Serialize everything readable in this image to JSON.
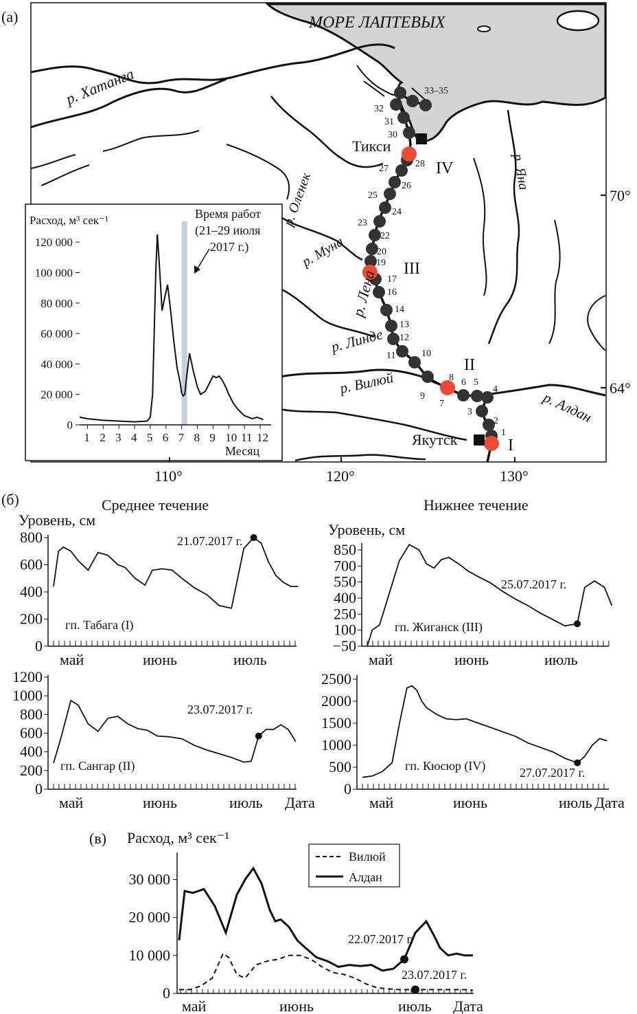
{
  "panel_labels": {
    "a": "(а)",
    "b": "(б)",
    "c": "(в)"
  },
  "map": {
    "sea_label": "МОРЕ ЛАПТЕВЫХ",
    "rivers": [
      "р. Хатанга",
      "р. Оленек",
      "р. Муна",
      "р. Лена",
      "р. Линде",
      "р. Вилюй",
      "р. Алдан",
      "р. Яна"
    ],
    "cities": [
      "Тикси",
      "Якутск"
    ],
    "sections": [
      "I",
      "II",
      "III",
      "IV"
    ],
    "stations": [
      "1",
      "2",
      "3",
      "4",
      "5",
      "6",
      "7",
      "8",
      "9",
      "10",
      "11",
      "12",
      "13",
      "14",
      "16",
      "17",
      "19",
      "20",
      "22",
      "23",
      "24",
      "25",
      "26",
      "27",
      "28",
      "30",
      "31",
      "32",
      "33–35"
    ],
    "longitudes": [
      "110°",
      "120°",
      "130°"
    ],
    "latitudes": [
      "70°",
      "64°"
    ]
  },
  "chart_data": [
    {
      "id": "inset",
      "type": "line",
      "ylabel": "Расход, м³ сек⁻¹",
      "xlabel": "Месяц",
      "yticks": [
        "0",
        "20 000",
        "40 000",
        "60 000",
        "80 000",
        "100 000",
        "120 000"
      ],
      "xticks": [
        "1",
        "2",
        "3",
        "4",
        "5",
        "6",
        "7",
        "8",
        "9",
        "10",
        "11",
        "12"
      ],
      "annotation": "Время работ (21–29 июля 2017 г.)",
      "annotation_lines": [
        "Время работ",
        "(21–29 июля",
        "2017 г.)"
      ],
      "highlight_months": [
        7.0,
        7.35
      ],
      "x": [
        0.5,
        1,
        2,
        3,
        4,
        4.8,
        5.0,
        5.15,
        5.25,
        5.35,
        5.45,
        5.55,
        5.75,
        5.95,
        6.1,
        6.3,
        6.5,
        6.7,
        6.9,
        7.0,
        7.1,
        7.2,
        7.3,
        7.5,
        7.75,
        8.0,
        8.2,
        8.5,
        8.8,
        9.0,
        9.2,
        9.4,
        9.6,
        9.8,
        10,
        10.3,
        10.6,
        11,
        11.5,
        11.8,
        12.2
      ],
      "y": [
        5000,
        4000,
        3000,
        2500,
        2000,
        2500,
        5000,
        20000,
        60000,
        100000,
        125000,
        110000,
        75000,
        85000,
        92000,
        75000,
        55000,
        38000,
        28000,
        21000,
        19000,
        20000,
        30000,
        47000,
        35000,
        25000,
        20000,
        22000,
        28000,
        32000,
        31000,
        32000,
        29000,
        25000,
        20000,
        14000,
        10000,
        6000,
        4000,
        5000,
        3500
      ],
      "ylim": [
        0,
        130000
      ]
    },
    {
      "id": "tabaga",
      "type": "line",
      "title": "Среднее течение",
      "ylabel": "Уровень, см",
      "station": "гп. Табага (I)",
      "annotation": "21.07.2017 г.",
      "marker_day": 81,
      "yticks": [
        "0",
        "200",
        "400",
        "600",
        "800"
      ],
      "ylim": [
        0,
        800
      ],
      "months": [
        "май",
        "июнь",
        "июль"
      ],
      "x": [
        0,
        2,
        4,
        7,
        10,
        14,
        18,
        22,
        26,
        29,
        33,
        37,
        40,
        44,
        48,
        52,
        57,
        62,
        67,
        72,
        77,
        81,
        84,
        87,
        90,
        93,
        96,
        99
      ],
      "y": [
        440,
        700,
        730,
        700,
        630,
        560,
        690,
        670,
        600,
        580,
        500,
        450,
        560,
        570,
        560,
        500,
        430,
        380,
        300,
        280,
        720,
        800,
        760,
        620,
        520,
        470,
        440,
        440
      ]
    },
    {
      "id": "zhigansk",
      "type": "line",
      "title": "Нижнее течение",
      "ylabel": "Уровень, см",
      "station": "гп. Жиганск (III)",
      "annotation": "25.07.2017 г.",
      "marker_day": 85,
      "yticks": [
        "−50",
        "100",
        "250",
        "400",
        "550",
        "700",
        "850"
      ],
      "ylim": [
        -50,
        850
      ],
      "months": [
        "май",
        "июнь",
        "июль"
      ],
      "x": [
        0,
        2,
        5,
        9,
        13,
        17,
        21,
        24,
        27,
        30,
        33,
        37,
        41,
        45,
        50,
        55,
        60,
        65,
        70,
        75,
        80,
        85,
        88,
        92,
        96,
        99
      ],
      "y": [
        -50,
        100,
        150,
        450,
        750,
        900,
        850,
        720,
        680,
        760,
        780,
        720,
        650,
        600,
        540,
        460,
        390,
        330,
        260,
        200,
        140,
        160,
        500,
        560,
        500,
        330
      ]
    },
    {
      "id": "sangar",
      "type": "line",
      "ylabel": "",
      "station": "гп. Сангар (II)",
      "annotation": "23.07.2017 г.",
      "marker_day": 83,
      "yticks": [
        "0",
        "200",
        "400",
        "600",
        "800",
        "1000",
        "1200"
      ],
      "ylim": [
        0,
        1200
      ],
      "months": [
        "май",
        "июнь",
        "июль",
        "Дата"
      ],
      "x": [
        0,
        3,
        7,
        10,
        14,
        18,
        22,
        26,
        30,
        34,
        38,
        42,
        47,
        52,
        57,
        62,
        67,
        72,
        77,
        80,
        83,
        86,
        89,
        92,
        95,
        98
      ],
      "y": [
        280,
        550,
        950,
        900,
        700,
        620,
        760,
        780,
        700,
        650,
        630,
        570,
        560,
        540,
        470,
        420,
        380,
        340,
        290,
        300,
        570,
        640,
        640,
        690,
        640,
        510
      ],
      "note_last": ""
    },
    {
      "id": "kyusyur",
      "type": "line",
      "ylabel": "",
      "station": "гп. Кюсюр (IV)",
      "annotation": "27.07.2017 г.",
      "marker_day": 87,
      "yticks": [
        "0",
        "500",
        "1000",
        "1500",
        "2000",
        "2500"
      ],
      "ylim": [
        0,
        2500
      ],
      "months": [
        "май",
        "июнь",
        "июль",
        "Дата"
      ],
      "x": [
        0,
        4,
        8,
        12,
        15,
        18,
        20,
        22,
        24,
        26,
        30,
        34,
        38,
        42,
        47,
        52,
        57,
        62,
        67,
        72,
        77,
        82,
        87,
        90,
        93,
        96,
        99
      ],
      "y": [
        270,
        300,
        400,
        600,
        1500,
        2300,
        2350,
        2250,
        2000,
        1850,
        1700,
        1600,
        1580,
        1600,
        1500,
        1400,
        1300,
        1200,
        1050,
        950,
        850,
        700,
        600,
        750,
        1000,
        1150,
        1100
      ]
    },
    {
      "id": "discharge",
      "type": "line",
      "ylabel": "Расход, м³ сек⁻¹",
      "yticks": [
        "0",
        "10 000",
        "20 000",
        "30 000"
      ],
      "ylim": [
        0,
        33000
      ],
      "months": [
        "май",
        "июнь",
        "июль",
        "Дата"
      ],
      "series": [
        {
          "name": "Алдан",
          "style": "solid",
          "x": [
            0,
            2,
            5,
            9,
            13,
            17,
            21,
            24,
            27,
            30,
            33,
            35,
            37,
            40,
            43,
            46,
            50,
            54,
            58,
            62,
            66,
            70,
            74,
            78,
            82,
            86,
            90,
            93,
            95,
            98,
            101,
            104,
            107
          ],
          "y": [
            14000,
            27000,
            26500,
            27500,
            23000,
            16000,
            26000,
            30000,
            33000,
            29000,
            22000,
            19000,
            19500,
            17500,
            14000,
            12000,
            9500,
            8500,
            7000,
            7500,
            7200,
            7500,
            6000,
            6500,
            9000,
            16000,
            19000,
            15000,
            12000,
            10000,
            10500,
            10000,
            10000
          ],
          "annotation": "22.07.2017 г.",
          "marker_day": 82
        },
        {
          "name": "Вилюй",
          "style": "dashed",
          "x": [
            0,
            4,
            8,
            12,
            16,
            18,
            21,
            24,
            28,
            32,
            36,
            40,
            44,
            48,
            52,
            56,
            60,
            64,
            68,
            72,
            76,
            80,
            84,
            88,
            92,
            96,
            100,
            104,
            107
          ],
          "y": [
            1000,
            1000,
            2000,
            4000,
            10500,
            9500,
            5000,
            4000,
            7500,
            8500,
            9000,
            10000,
            10000,
            9000,
            7000,
            5500,
            5000,
            4000,
            2500,
            1500,
            1200,
            1000,
            1000,
            1000,
            1000,
            1000,
            1000,
            1000,
            800
          ],
          "annotation": "23.07.2017 г.",
          "marker_day": 86
        }
      ],
      "legend": [
        "Вилюй",
        "Алдан"
      ]
    }
  ]
}
